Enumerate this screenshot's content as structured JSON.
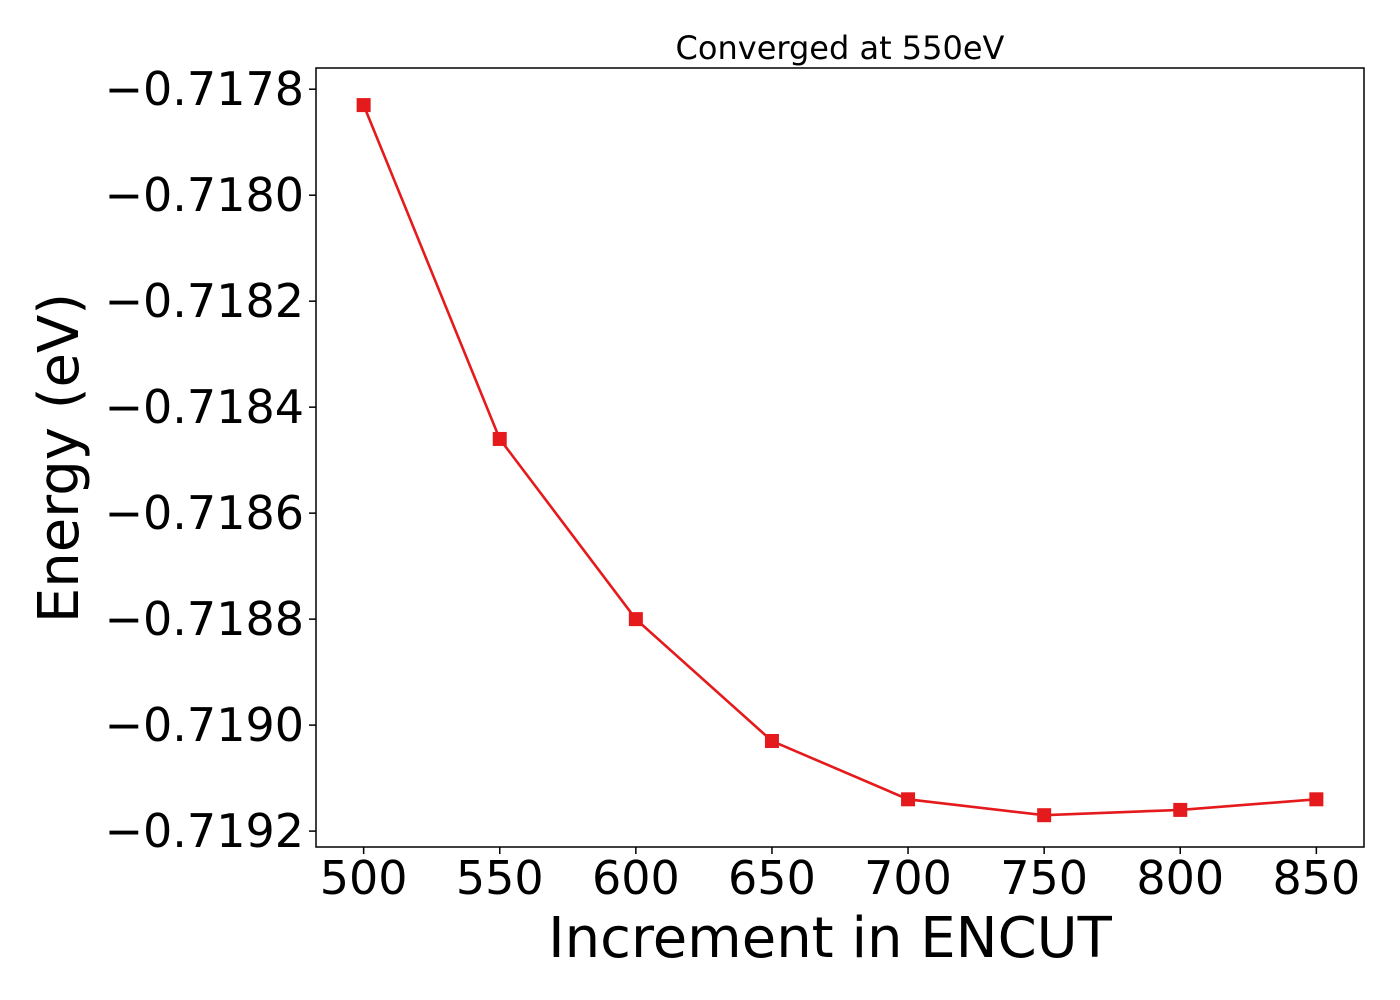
{
  "chart_data": {
    "type": "line",
    "title": "Converged at 550eV",
    "xlabel": "Increment in ENCUT",
    "ylabel": "Energy (eV)",
    "xlim": [
      482.5,
      867.5
    ],
    "ylim": [
      -0.71923,
      -0.71776
    ],
    "x_ticks": [
      500,
      550,
      600,
      650,
      700,
      750,
      800,
      850
    ],
    "x_tick_labels": [
      "500",
      "550",
      "600",
      "650",
      "700",
      "750",
      "800",
      "850"
    ],
    "y_ticks": [
      -0.7178,
      -0.718,
      -0.7182,
      -0.7184,
      -0.7186,
      -0.7188,
      -0.719,
      -0.7192
    ],
    "y_tick_labels": [
      "−0.7178",
      "−0.7180",
      "−0.7182",
      "−0.7184",
      "−0.7186",
      "−0.7188",
      "−0.7190",
      "−0.7192"
    ],
    "grid": false,
    "series": [
      {
        "color": "#e41a1c",
        "marker": "square",
        "x": [
          500,
          550,
          600,
          650,
          700,
          750,
          800,
          850
        ],
        "y": [
          -0.71783,
          -0.71846,
          -0.7188,
          -0.71903,
          -0.71914,
          -0.71917,
          -0.71916,
          -0.71914
        ]
      }
    ]
  }
}
